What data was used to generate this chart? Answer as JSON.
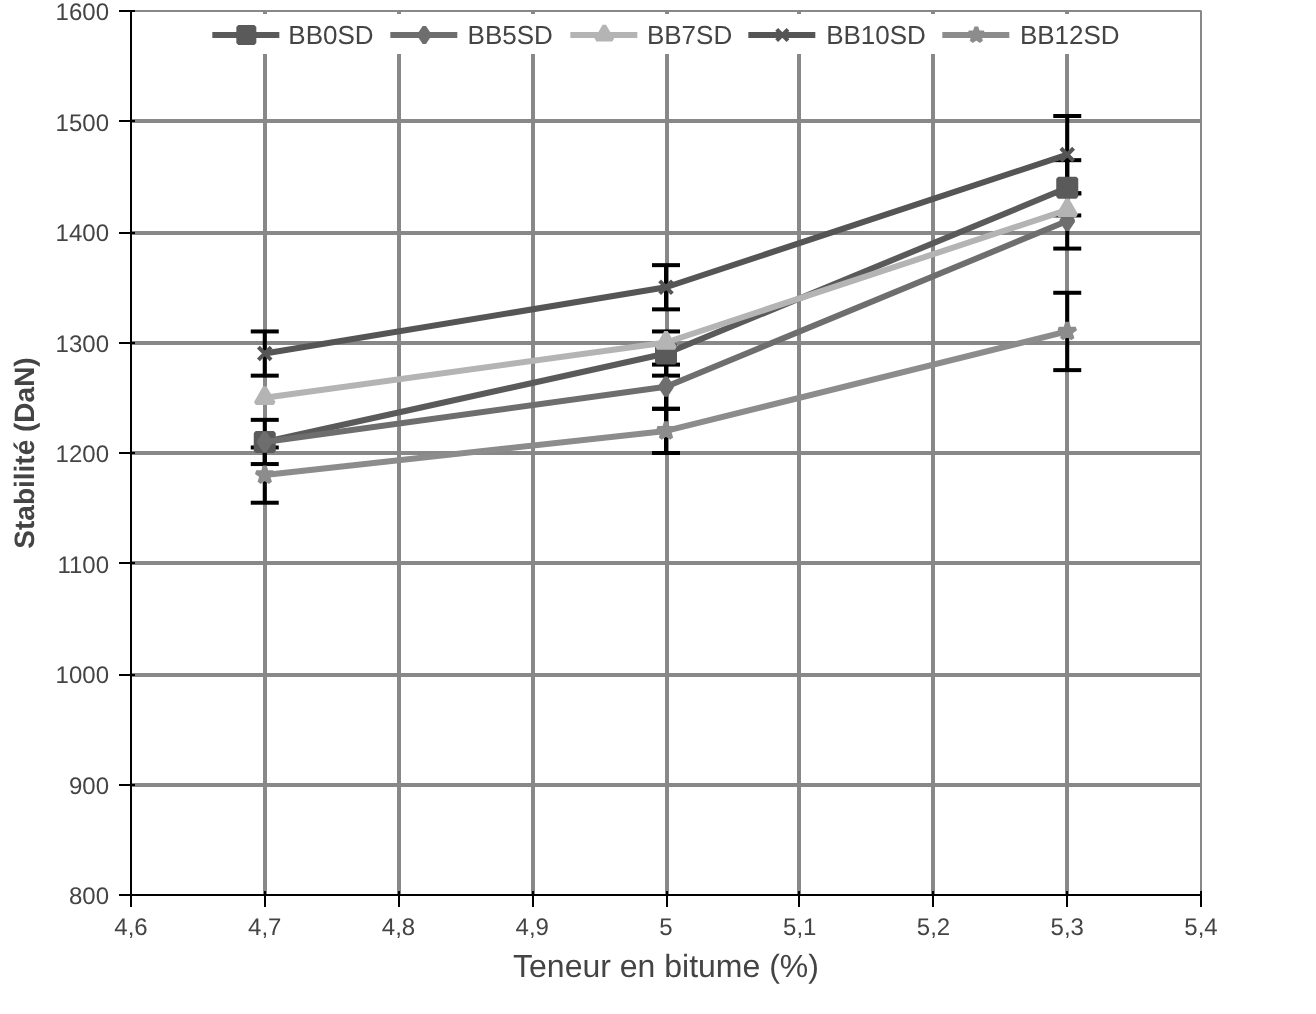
{
  "chart_data": {
    "type": "line",
    "xlabel": "Teneur en bitume (%)",
    "ylabel": "Stabilité (DaN)",
    "x": [
      4.7,
      5,
      5.3
    ],
    "series": [
      {
        "name": "BB0SD",
        "color": "#5a5a5a",
        "marker": "square",
        "values": [
          1210,
          1290,
          1440
        ],
        "errors": [
          20,
          20,
          25
        ]
      },
      {
        "name": "BB5SD",
        "color": "#6e6e6e",
        "marker": "diamond",
        "values": [
          1210,
          1260,
          1410
        ],
        "errors": [
          null,
          20,
          25
        ]
      },
      {
        "name": "BB7SD",
        "color": "#b4b4b4",
        "marker": "triangle",
        "values": [
          1250,
          1300,
          1420
        ],
        "errors": [
          null,
          null,
          null
        ]
      },
      {
        "name": "BB10SD",
        "color": "#555555",
        "marker": "cross",
        "values": [
          1290,
          1350,
          1470
        ],
        "errors": [
          20,
          20,
          35
        ]
      },
      {
        "name": "BB12SD",
        "color": "#8c8c8c",
        "marker": "star",
        "values": [
          1180,
          1220,
          1310
        ],
        "errors": [
          25,
          20,
          35
        ]
      }
    ],
    "xlim": [
      4.6,
      5.4
    ],
    "xticks": [
      {
        "value": 4.6,
        "label": "4,6"
      },
      {
        "value": 4.7,
        "label": "4,7"
      },
      {
        "value": 4.8,
        "label": "4,8"
      },
      {
        "value": 4.9,
        "label": "4,9"
      },
      {
        "value": 5,
        "label": "5"
      },
      {
        "value": 5.1,
        "label": "5,1"
      },
      {
        "value": 5.2,
        "label": "5,2"
      },
      {
        "value": 5.3,
        "label": "5,3"
      },
      {
        "value": 5.4,
        "label": "5,4"
      }
    ],
    "ylim": [
      800,
      1600
    ],
    "yticks": [
      800,
      900,
      1000,
      1100,
      1200,
      1300,
      1400,
      1500,
      1600
    ],
    "grid": true,
    "legend": "top",
    "line_style": "solid"
  }
}
